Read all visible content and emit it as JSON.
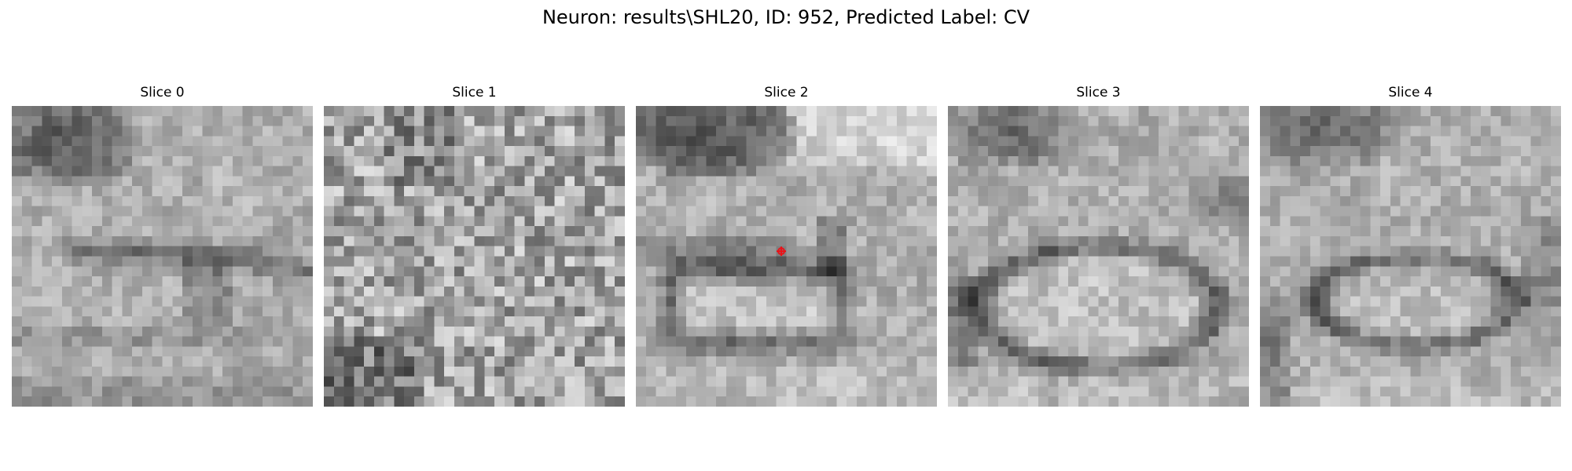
{
  "figure": {
    "title": "Neuron: results\\SHL20, ID: 952, Predicted Label: CV"
  },
  "slices": [
    {
      "title": "Slice 0",
      "seed": 11,
      "pattern": "upper-dark-membrane"
    },
    {
      "title": "Slice 1",
      "seed": 23,
      "pattern": "noisy"
    },
    {
      "title": "Slice 2",
      "seed": 37,
      "pattern": "vesicle-rect",
      "marker": {
        "col": 14.5,
        "row": 14.5
      }
    },
    {
      "title": "Slice 3",
      "seed": 41,
      "pattern": "vesicle-ring"
    },
    {
      "title": "Slice 4",
      "seed": 53,
      "pattern": "vesicle-ring-small"
    }
  ],
  "style": {
    "marker_color": "#e8141a",
    "colormap": "gray"
  }
}
